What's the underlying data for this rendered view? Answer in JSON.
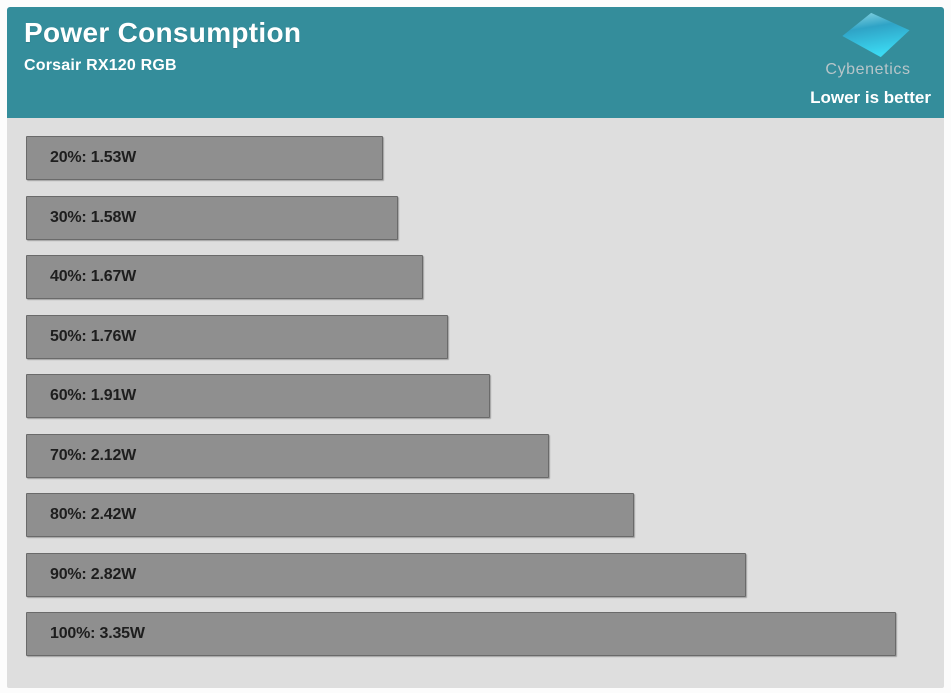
{
  "header": {
    "title": "Power Consumption",
    "subtitle": "Corsair RX120 RGB",
    "brand": "Cybenetics",
    "note": "Lower is better"
  },
  "colors": {
    "header-bg": "#348d9b",
    "title-text": "#ffffff",
    "brand-text": "#b7c5c9",
    "note-text": "#ffffff",
    "plot-bg": "#dedede",
    "bar-fill": "#8f8f8f",
    "bar-border": "#6a6a6a",
    "bar-text": "#1e1e1e",
    "logo-grad-top": "#8ed8e4",
    "logo-grad-mid": "#2fa3c6",
    "logo-grad-end": "#3bd9f2"
  },
  "chart_data": {
    "type": "bar",
    "orientation": "horizontal",
    "title": "Power Consumption",
    "subtitle": "Corsair RX120 RGB",
    "annotation": "Lower is better",
    "unit": "W",
    "categories": [
      "20%",
      "30%",
      "40%",
      "50%",
      "60%",
      "70%",
      "80%",
      "90%",
      "100%"
    ],
    "values": [
      1.53,
      1.58,
      1.67,
      1.76,
      1.91,
      2.12,
      2.42,
      2.82,
      3.35
    ],
    "labels": [
      "20%: 1.53W",
      "30%: 1.58W",
      "40%: 1.67W",
      "50%: 1.76W",
      "60%: 1.91W",
      "70%: 2.12W",
      "80%: 2.42W",
      "90%: 2.82W",
      "100%: 3.35W"
    ],
    "xlim": [
      0.26,
      3.49
    ],
    "grid": false,
    "legend": false,
    "value_labels_position": "inside-left"
  }
}
